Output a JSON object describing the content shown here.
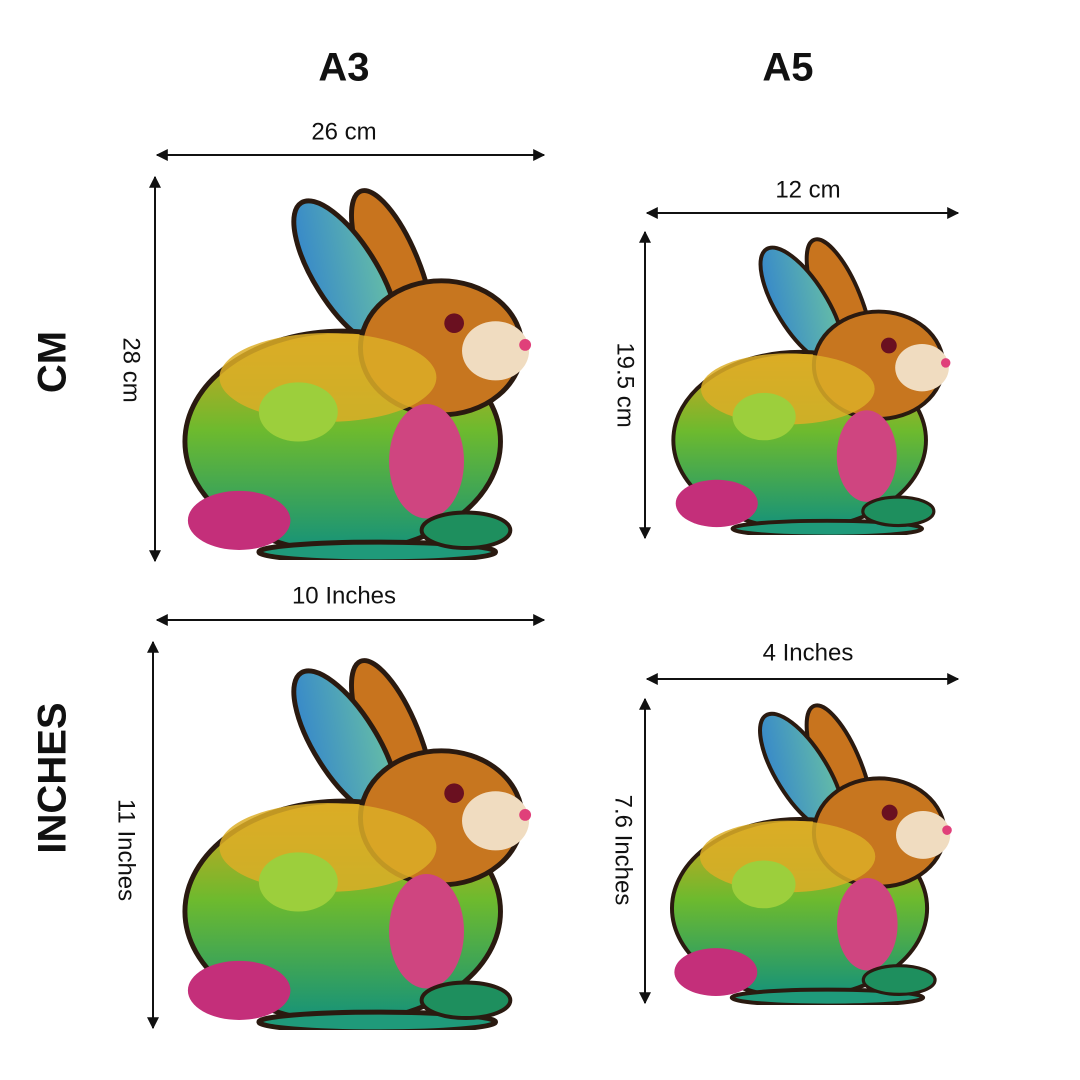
{
  "columns": [
    "A3",
    "A5"
  ],
  "rows": [
    {
      "label": "CM",
      "cells": [
        {
          "width": "26 cm",
          "height": "28 cm"
        },
        {
          "width": "12 cm",
          "height": "19.5 cm"
        }
      ]
    },
    {
      "label": "INCHES",
      "cells": [
        {
          "width": "10 Inches",
          "height": "11 Inches"
        },
        {
          "width": "4 Inches",
          "height": "7.6 Inches"
        }
      ]
    }
  ]
}
